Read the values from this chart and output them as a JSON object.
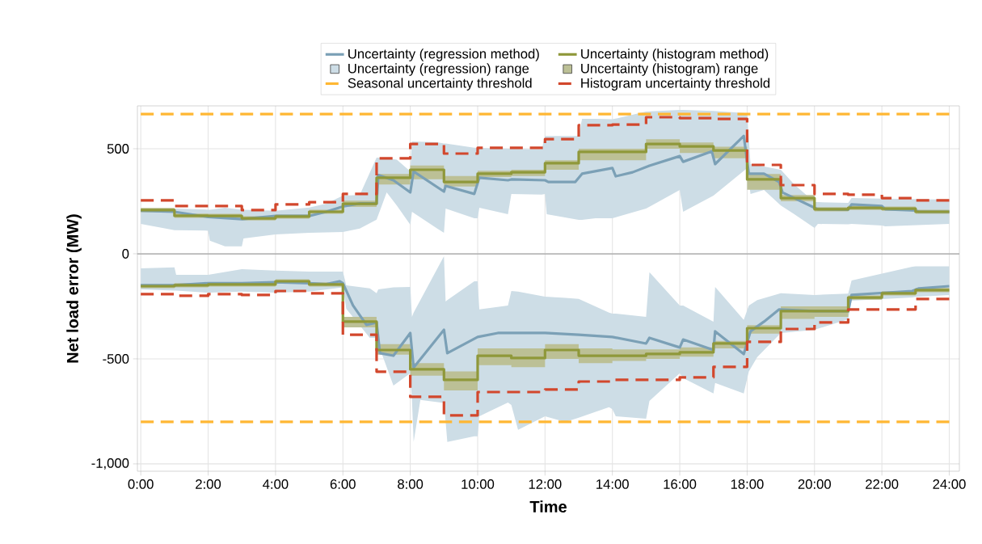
{
  "chart_data": {
    "type": "line",
    "xlabel": "Time",
    "ylabel": "Net load error (MW)",
    "xlim": [
      -0.1,
      24.3
    ],
    "ylim": [
      -1035,
      704
    ],
    "xticks": [
      {
        "value": 0,
        "label": "0:00"
      },
      {
        "value": 2,
        "label": "2:00"
      },
      {
        "value": 4,
        "label": "4:00"
      },
      {
        "value": 6,
        "label": "6:00"
      },
      {
        "value": 8,
        "label": "8:00"
      },
      {
        "value": 10,
        "label": "10:00"
      },
      {
        "value": 12,
        "label": "12:00"
      },
      {
        "value": 14,
        "label": "14:00"
      },
      {
        "value": 16,
        "label": "16:00"
      },
      {
        "value": 18,
        "label": "18:00"
      },
      {
        "value": 20,
        "label": "20:00"
      },
      {
        "value": 22,
        "label": "22:00"
      },
      {
        "value": 24,
        "label": "24:00"
      }
    ],
    "yticks": [
      {
        "value": -1000,
        "label": "-1,000"
      },
      {
        "value": -500,
        "label": "-500"
      },
      {
        "value": 0,
        "label": "0"
      },
      {
        "value": 500,
        "label": "500"
      }
    ],
    "grid": true,
    "legend": "top",
    "ref_lines": [
      {
        "axis": "y",
        "value": 0,
        "color": "#a6a6a6"
      }
    ],
    "series": [
      {
        "type": "line",
        "name": "Uncertainty (regression method)",
        "color": "#7ba0b6",
        "x": [
          0,
          1,
          2,
          3,
          4,
          5,
          5.5,
          6,
          6.5,
          7,
          7.05,
          7.5,
          8,
          8.1,
          9,
          9.05,
          9.9,
          10.05,
          10.9,
          11,
          12,
          12.1,
          12.9,
          13.1,
          14,
          14.1,
          14.6,
          15.1,
          16,
          16.1,
          16.95,
          17.05,
          17.9,
          18.05,
          18.5,
          18.95,
          19.05,
          20,
          20.1,
          21,
          21.1,
          22,
          22.1,
          23,
          23.1,
          24
        ],
        "values": [
          205,
          200,
          175,
          165,
          180,
          180,
          200,
          225,
          240,
          240,
          375,
          350,
          292,
          392,
          296,
          323,
          285,
          362,
          350,
          354,
          350,
          342,
          342,
          381,
          408,
          369,
          388,
          419,
          465,
          438,
          488,
          427,
          561,
          381,
          381,
          342,
          292,
          219,
          212,
          210,
          235,
          227,
          212,
          206,
          200,
          200
        ]
      },
      {
        "type": "step",
        "name": "Uncertainty (histogram method)",
        "color": "#8f983a",
        "x": [
          0,
          1,
          2,
          3,
          4,
          5,
          6,
          7,
          8,
          9,
          10,
          11,
          12,
          13,
          14,
          15,
          16,
          17,
          18,
          19,
          20,
          21,
          22,
          23,
          24
        ],
        "values": [
          208,
          181,
          180,
          169,
          177,
          200,
          238,
          362,
          400,
          342,
          381,
          388,
          431,
          485,
          485,
          523,
          511,
          492,
          354,
          265,
          212,
          219,
          215,
          200,
          200
        ]
      },
      {
        "type": "line",
        "name": "Uncertainty (regression) range",
        "color": "#cddde6",
        "x": [
          0,
          1,
          2,
          2.05,
          2.5,
          3,
          3.05,
          4,
          5,
          5.5,
          6,
          6.5,
          7,
          7.3,
          7.6,
          8,
          8.05,
          8.8,
          9,
          9.05,
          9.9,
          10,
          10.05,
          10.9,
          11,
          11.9,
          12,
          12.05,
          13,
          13.1,
          13.5,
          14,
          15,
          16,
          16.1,
          17,
          18,
          18.1,
          18.5,
          19,
          19.4,
          20,
          20.1,
          21,
          21.1,
          22,
          22.1,
          24
        ],
        "values": [
          null,
          null,
          null,
          null,
          null,
          null,
          null,
          null,
          null,
          null,
          null,
          null,
          null,
          null,
          null,
          null,
          null,
          null,
          null,
          null,
          null,
          null,
          null,
          null,
          null,
          null,
          null,
          null,
          null,
          null,
          null,
          null,
          null,
          null,
          null,
          null,
          null,
          null,
          null,
          null,
          null,
          null,
          null,
          null,
          null,
          null,
          null,
          null
        ],
        "upper": [
          215,
          215,
          210,
          210,
          219,
          210,
          210,
          205,
          220,
          238,
          277,
          280,
          458,
          455,
          448,
          392,
          535,
          531,
          525,
          525,
          505,
          504,
          504,
          500,
          500,
          496,
          561,
          561,
          561,
          642,
          642,
          640,
          677,
          685,
          685,
          680,
          669,
          427,
          415,
          400,
          330,
          246,
          246,
          242,
          265,
          262,
          262,
          258
        ],
        "lower": [
          142,
          112,
          110,
          62,
          35,
          35,
          73,
          92,
          100,
          102,
          104,
          120,
          162,
          292,
          230,
          138,
          200,
          120,
          100,
          215,
          169,
          169,
          219,
          188,
          285,
          282,
          285,
          188,
          161,
          161,
          169,
          169,
          215,
          304,
          200,
          277,
          408,
          285,
          304,
          230,
          188,
          123,
          142,
          140,
          142,
          135,
          131,
          142
        ]
      },
      {
        "type": "step",
        "name": "Uncertainty (histogram) range",
        "color": "#bcc096",
        "x": [
          0,
          1,
          2,
          3,
          4,
          5,
          6,
          7,
          8,
          9,
          10,
          11,
          12,
          13,
          14,
          15,
          16,
          17,
          18,
          19,
          20,
          21,
          22,
          23,
          24
        ],
        "values": [
          null,
          null,
          null,
          null,
          null,
          null,
          null,
          null,
          null,
          null,
          null,
          null,
          null,
          null,
          null,
          null,
          null,
          null,
          null,
          null,
          null,
          null,
          null,
          null,
          null
        ],
        "upper": [
          218,
          191,
          190,
          179,
          187,
          210,
          253,
          380,
          420,
          370,
          395,
          400,
          445,
          500,
          500,
          545,
          530,
          510,
          380,
          280,
          222,
          229,
          225,
          210,
          210
        ],
        "lower": [
          198,
          171,
          170,
          159,
          167,
          190,
          223,
          330,
          355,
          320,
          365,
          370,
          400,
          445,
          445,
          500,
          480,
          455,
          305,
          250,
          202,
          209,
          205,
          190,
          190
        ]
      },
      {
        "type": "line",
        "name": "Seasonal uncertainty threshold",
        "color": "#ffb733",
        "line_style": "dashed",
        "x": [
          0,
          24
        ],
        "values": [
          665,
          665
        ]
      },
      {
        "type": "step",
        "name": "Histogram uncertainty threshold",
        "color": "#d2472c",
        "line_style": "dashed",
        "x": [
          0,
          1,
          2,
          3,
          4,
          5,
          6,
          7,
          8,
          9,
          10,
          11,
          12,
          13,
          14,
          15,
          16,
          17,
          18,
          19,
          20,
          21,
          22,
          23,
          24
        ],
        "values": [
          254,
          227,
          227,
          208,
          235,
          246,
          285,
          454,
          523,
          477,
          504,
          504,
          546,
          612,
          615,
          650,
          646,
          642,
          423,
          327,
          285,
          281,
          265,
          254,
          254
        ]
      },
      {
        "type": "line",
        "color": "#7ba0b6",
        "x": [
          0,
          1,
          2,
          3,
          4,
          5,
          5.5,
          5.9,
          6,
          6.3,
          6.7,
          7,
          7.1,
          7.5,
          8,
          8.1,
          9,
          9.1,
          10,
          10.6,
          12,
          13,
          14,
          15,
          15.1,
          16,
          16.1,
          17,
          17.05,
          17.9,
          18.1,
          18.5,
          18.95,
          20,
          21,
          21.1,
          22.9,
          23.1,
          24
        ],
        "values": [
          -150,
          -150,
          -140,
          -140,
          -135,
          -140,
          -145,
          -131,
          -140,
          -246,
          -338,
          -327,
          -473,
          -485,
          -377,
          -542,
          -362,
          -473,
          -396,
          -377,
          -377,
          -385,
          -396,
          -427,
          -400,
          -446,
          -408,
          -458,
          -369,
          -477,
          -369,
          -323,
          -265,
          -273,
          -273,
          -196,
          -177,
          -165,
          -154
        ]
      },
      {
        "type": "step",
        "color": "#8f983a",
        "x": [
          0,
          1,
          2,
          3,
          4,
          5,
          6,
          7,
          8,
          9,
          10,
          11,
          12,
          13,
          14,
          15,
          16,
          17,
          18,
          19,
          20,
          21,
          22,
          23,
          24
        ],
        "values": [
          -154,
          -150,
          -146,
          -146,
          -131,
          -146,
          -323,
          -458,
          -550,
          -600,
          -485,
          -496,
          -458,
          -485,
          -485,
          -477,
          -469,
          -427,
          -354,
          -273,
          -273,
          -208,
          -188,
          -173,
          -173
        ]
      },
      {
        "type": "line",
        "color": "#cddde6",
        "x": [
          0,
          1,
          1.05,
          2,
          3,
          4,
          5,
          6,
          6.1,
          6.8,
          7,
          7.05,
          7.5,
          8,
          8.05,
          8.1,
          8.3,
          9,
          9.05,
          9.1,
          9.9,
          10,
          10.05,
          10.9,
          11,
          11.2,
          12,
          12.6,
          13,
          13.9,
          14,
          14.1,
          15,
          15.1,
          16,
          16.1,
          17,
          17.05,
          17.9,
          18.05,
          18.3,
          19,
          20,
          21,
          21.1,
          22.9,
          23,
          24
        ],
        "values": [
          null,
          null,
          null,
          null,
          null,
          null,
          null,
          null,
          null,
          null,
          null,
          null,
          null,
          null,
          null,
          null,
          null,
          null,
          null,
          null,
          null,
          null,
          null,
          null,
          null,
          null,
          null,
          null,
          null,
          null,
          null,
          null,
          null,
          null,
          null,
          null,
          null,
          null,
          null,
          null,
          null,
          null,
          null,
          null,
          null,
          null,
          null,
          null
        ],
        "upper": [
          -69,
          -65,
          -100,
          -100,
          -73,
          -80,
          -85,
          -85,
          -150,
          -165,
          -188,
          -169,
          -160,
          -158,
          -300,
          -280,
          -220,
          -12,
          -227,
          -220,
          -131,
          -131,
          -265,
          -246,
          -177,
          -180,
          -204,
          -210,
          -215,
          -280,
          -285,
          -285,
          -300,
          -88,
          -246,
          -246,
          -323,
          -158,
          -315,
          -246,
          -220,
          -188,
          -196,
          -190,
          -127,
          -62,
          -60,
          -60
        ],
        "lower": [
          -169,
          -175,
          -175,
          -185,
          -180,
          -185,
          -180,
          -160,
          -262,
          -400,
          -400,
          -430,
          -627,
          -569,
          -692,
          -896,
          -696,
          -710,
          -800,
          -896,
          -869,
          -869,
          -773,
          -708,
          -720,
          -838,
          -773,
          -800,
          -780,
          -730,
          -740,
          -773,
          -785,
          -700,
          -569,
          -592,
          -665,
          -615,
          -665,
          -560,
          -492,
          -377,
          -362,
          -312,
          -223,
          -208,
          -205,
          -196
        ]
      },
      {
        "type": "step",
        "color": "#bcc096",
        "x": [
          0,
          1,
          2,
          3,
          4,
          5,
          6,
          7,
          8,
          9,
          10,
          11,
          12,
          13,
          14,
          15,
          16,
          17,
          18,
          19,
          20,
          21,
          22,
          23,
          24
        ],
        "values": [
          null,
          null,
          null,
          null,
          null,
          null,
          null,
          null,
          null,
          null,
          null,
          null,
          null,
          null,
          null,
          null,
          null,
          null,
          null,
          null,
          null,
          null,
          null,
          null,
          null
        ],
        "upper": [
          -144,
          -140,
          -136,
          -136,
          -121,
          -136,
          -300,
          -430,
          -520,
          -560,
          -450,
          -450,
          -430,
          -450,
          -455,
          -455,
          -445,
          -415,
          -340,
          -250,
          -250,
          -198,
          -178,
          -163,
          -163
        ],
        "lower": [
          -164,
          -160,
          -156,
          -156,
          -141,
          -156,
          -350,
          -480,
          -580,
          -650,
          -530,
          -540,
          -500,
          -520,
          -510,
          -500,
          -490,
          -450,
          -380,
          -310,
          -300,
          -218,
          -198,
          -183,
          -183
        ]
      },
      {
        "type": "line",
        "color": "#ffb733",
        "line_style": "dashed",
        "x": [
          0,
          24
        ],
        "values": [
          -800,
          -800
        ]
      },
      {
        "type": "step",
        "color": "#d2472c",
        "line_style": "dashed",
        "x": [
          0,
          1,
          2,
          3,
          4,
          5,
          6,
          7,
          8,
          9,
          10,
          11,
          12,
          13,
          14,
          15,
          16,
          17,
          18,
          19,
          20,
          21,
          22,
          23,
          24
        ],
        "values": [
          -192,
          -200,
          -192,
          -196,
          -177,
          -188,
          -385,
          -561,
          -681,
          -769,
          -658,
          -658,
          -646,
          -608,
          -600,
          -600,
          -588,
          -538,
          -419,
          -358,
          -327,
          -265,
          -265,
          -215,
          -215
        ]
      }
    ]
  }
}
